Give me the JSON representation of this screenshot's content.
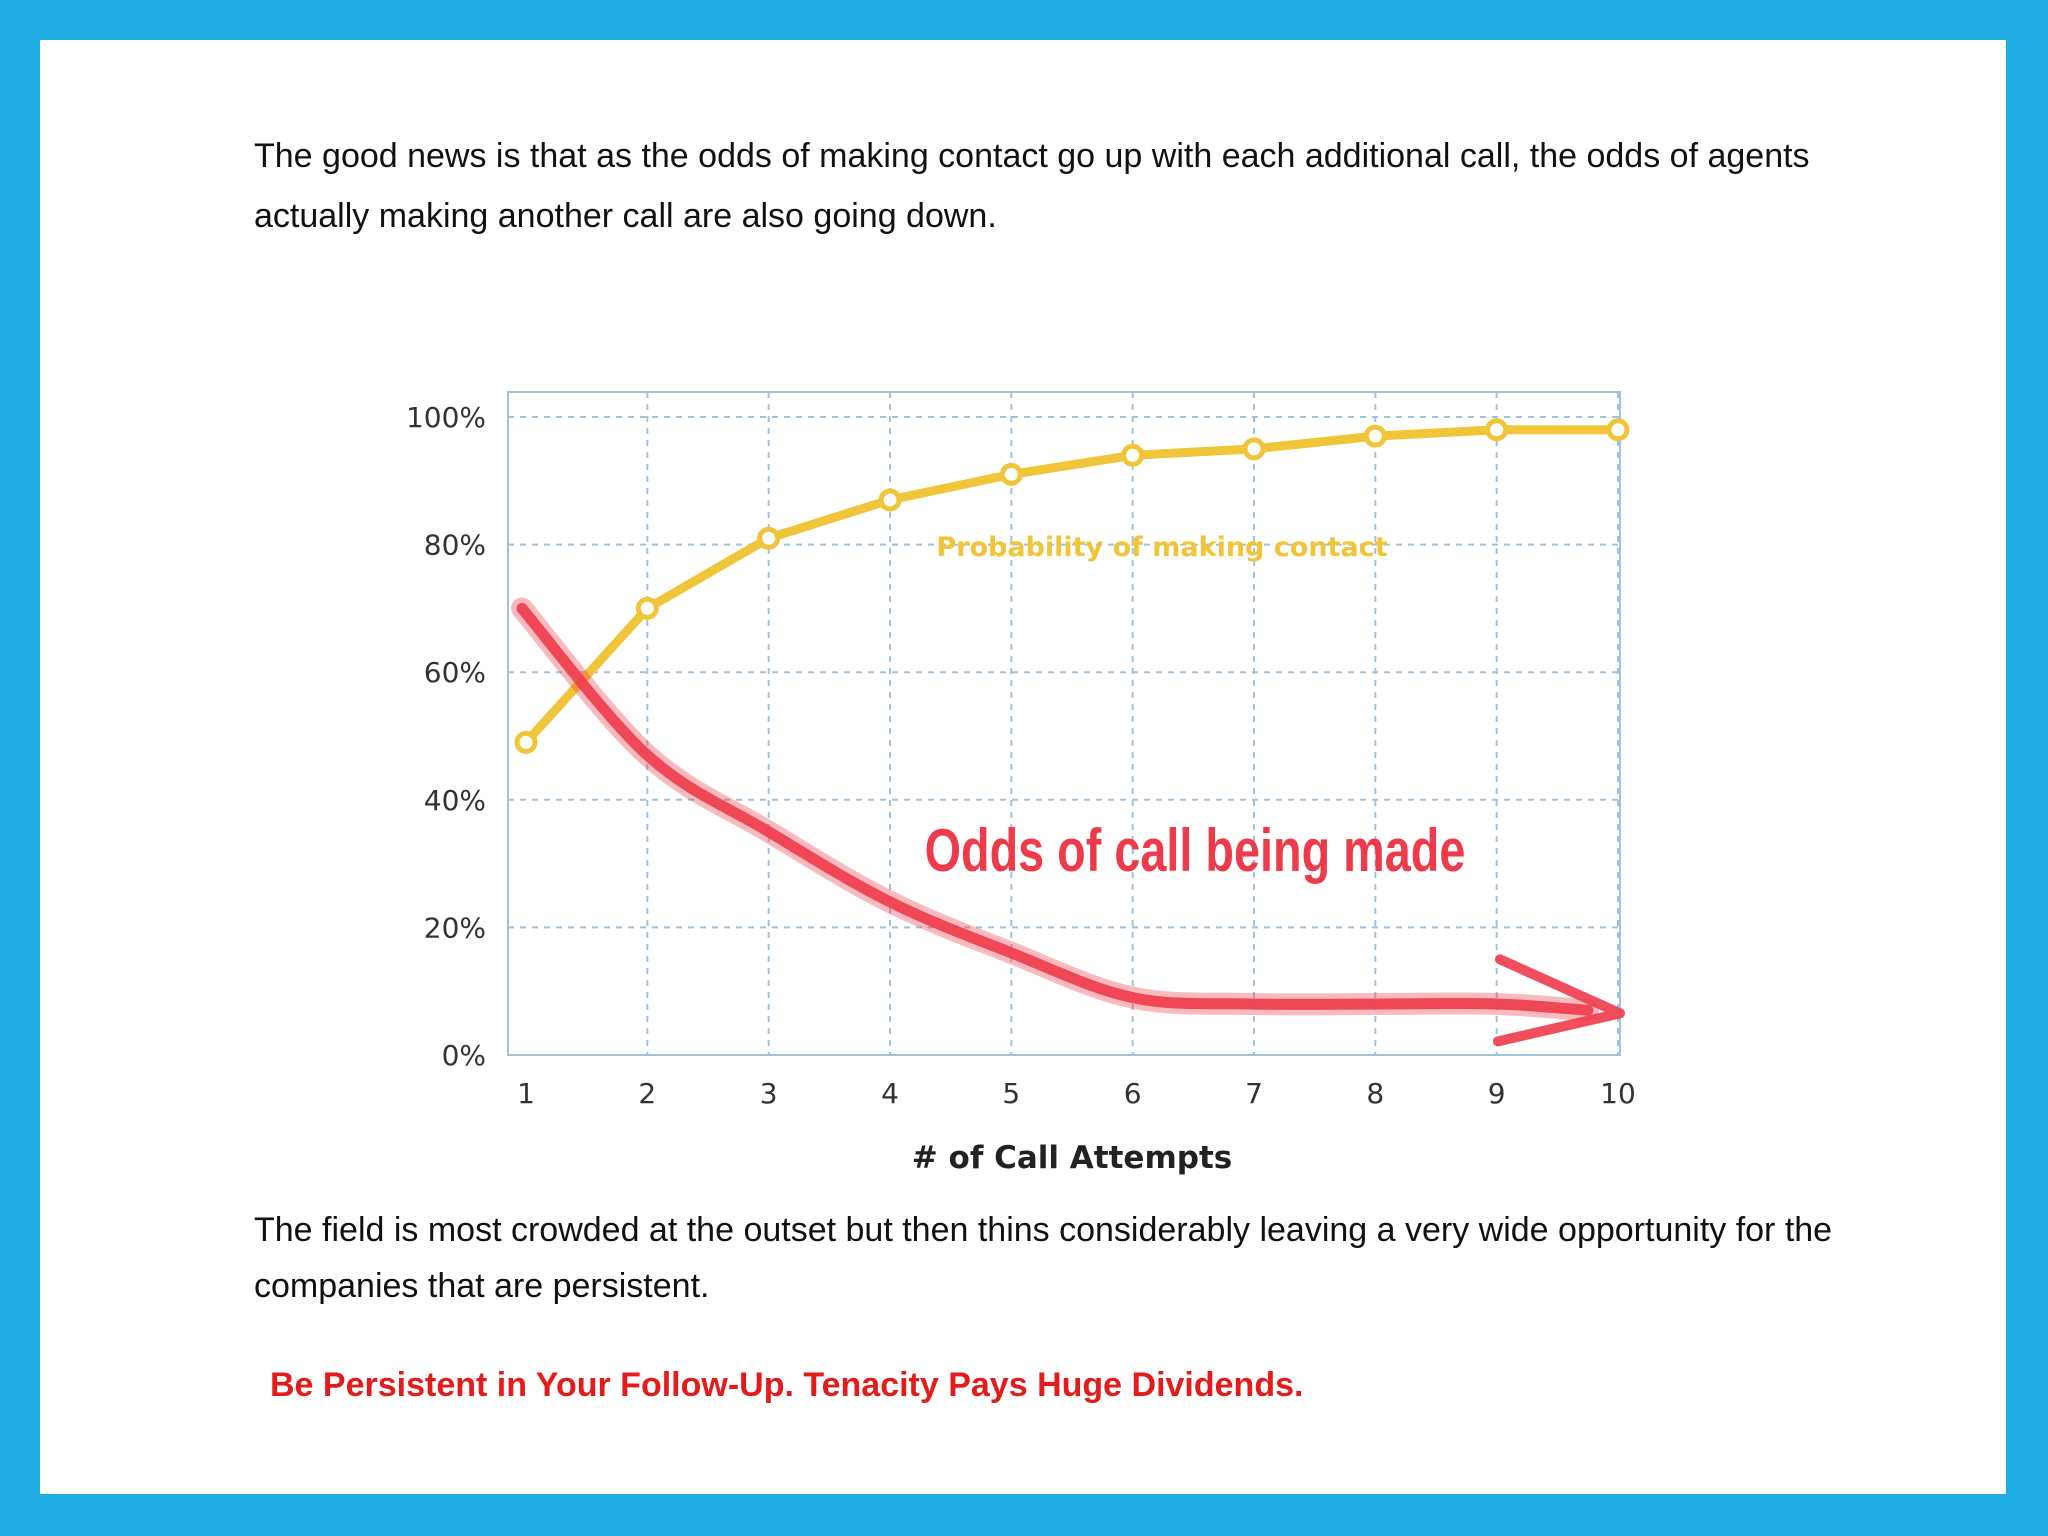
{
  "paragraphs": {
    "intro": "The good news is that as the odds of making contact go up with each additional call, the odds of agents actually making another call are also going down.",
    "conclusion": "The field is most crowded at the outset but then thins considerably leaving a very wide opportunity for the companies that are persistent."
  },
  "tagline": "Be Persistent in Your Follow-Up. Tenacity Pays Huge Dividends.",
  "colors": {
    "frame": "#1fade4",
    "contact_line": "#f0c53a",
    "call_odds_arrow": "#ee3b4b",
    "grid": "#9fc2de",
    "tagline": "#e31b1b"
  },
  "chart_data": {
    "type": "line",
    "title": "",
    "xlabel": "# of Call Attempts",
    "ylabel": "",
    "x": [
      1,
      2,
      3,
      4,
      5,
      6,
      7,
      8,
      9,
      10
    ],
    "xlim": [
      1,
      10
    ],
    "ylim": [
      0,
      100
    ],
    "yticks": [
      "0%",
      "20%",
      "40%",
      "60%",
      "80%",
      "100%"
    ],
    "ytick_values": [
      0,
      20,
      40,
      60,
      80,
      100
    ],
    "grid": true,
    "series": [
      {
        "name": "Probability of making contact",
        "values": [
          49,
          70,
          81,
          87,
          91,
          94,
          95,
          97,
          98,
          98
        ],
        "markers": true
      },
      {
        "name": "Odds of call being made",
        "values": [
          70,
          47,
          35,
          24,
          16,
          9,
          8,
          8,
          8,
          7
        ],
        "style": "hand-drawn arrow",
        "markers": false
      }
    ]
  }
}
